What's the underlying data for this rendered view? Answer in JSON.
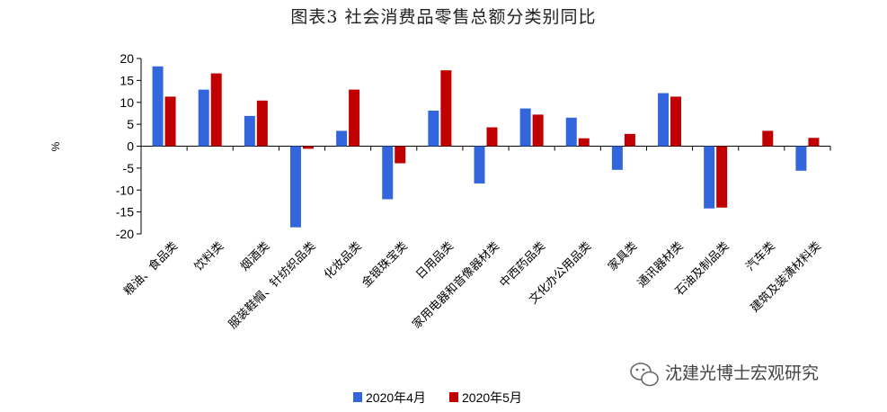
{
  "title": "图表3 社会消费品零售总额分类别同比",
  "watermark": "沈建光博士宏观研究",
  "chart_data": {
    "type": "bar",
    "title": "图表3 社会消费品零售总额分类别同比",
    "ylabel": "%",
    "xlabel": "",
    "ylim": [
      -20,
      20
    ],
    "yticks": [
      20,
      15,
      10,
      5,
      0,
      -5,
      -10,
      -15,
      -20
    ],
    "grid": false,
    "legend_position": "bottom-center",
    "categories": [
      "粮油、食品类",
      "饮料类",
      "烟酒类",
      "服装鞋帽、针纺织品类",
      "化妆品类",
      "金银珠宝类",
      "日用品类",
      "家用电器和音像器材类",
      "中西药品类",
      "文化办公用品类",
      "家具类",
      "通讯器材类",
      "石油及制品类",
      "汽车类",
      "建筑及装潢材料类"
    ],
    "series": [
      {
        "name": "2020年4月",
        "color": "#3366dd",
        "values": [
          18.2,
          12.9,
          6.9,
          -18.5,
          3.5,
          -12.1,
          8.1,
          -8.5,
          8.6,
          6.5,
          -5.4,
          12.1,
          -14.2,
          0.0,
          -5.6
        ]
      },
      {
        "name": "2020年5月",
        "color": "#c00000",
        "values": [
          11.3,
          16.6,
          10.4,
          -0.6,
          12.9,
          -3.9,
          17.3,
          4.3,
          7.2,
          1.8,
          2.8,
          11.3,
          -14.0,
          3.5,
          1.9
        ]
      }
    ]
  }
}
